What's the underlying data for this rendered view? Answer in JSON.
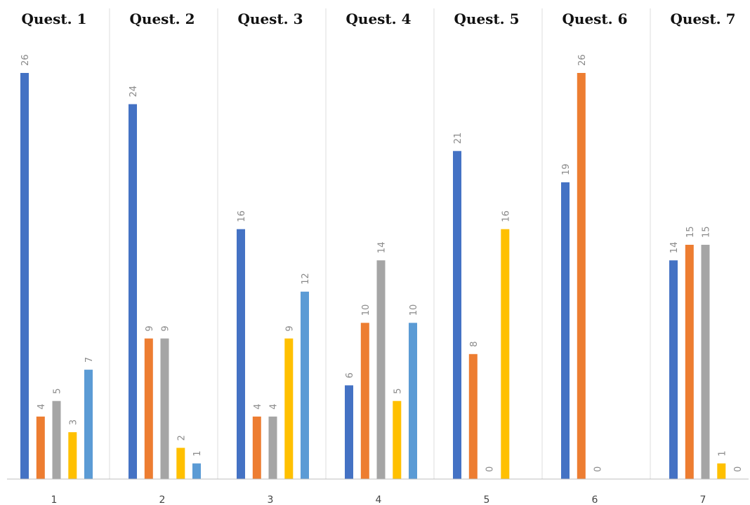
{
  "chart_data": {
    "type": "bar",
    "panels": [
      {
        "title": "Quest. 1",
        "category": "1",
        "values": [
          26,
          4,
          5,
          3,
          7
        ]
      },
      {
        "title": "Quest. 2",
        "category": "2",
        "values": [
          24,
          9,
          9,
          2,
          1
        ]
      },
      {
        "title": "Quest. 3",
        "category": "3",
        "values": [
          16,
          4,
          4,
          9,
          12
        ]
      },
      {
        "title": "Quest. 4",
        "category": "4",
        "values": [
          6,
          10,
          14,
          5,
          10
        ]
      },
      {
        "title": "Quest. 5",
        "category": "5",
        "values": [
          21,
          8,
          0,
          16
        ]
      },
      {
        "title": "Quest. 6",
        "category": "6",
        "values": [
          19,
          26,
          0
        ]
      },
      {
        "title": "Quest. 7",
        "category": "7",
        "values": [
          14,
          15,
          15,
          1,
          0
        ]
      }
    ],
    "series_colors": [
      "#4472c4",
      "#ed7d31",
      "#a5a5a5",
      "#ffc000",
      "#5b9bd5"
    ],
    "ylim": [
      0,
      26
    ],
    "grid": false,
    "legend": "none"
  }
}
